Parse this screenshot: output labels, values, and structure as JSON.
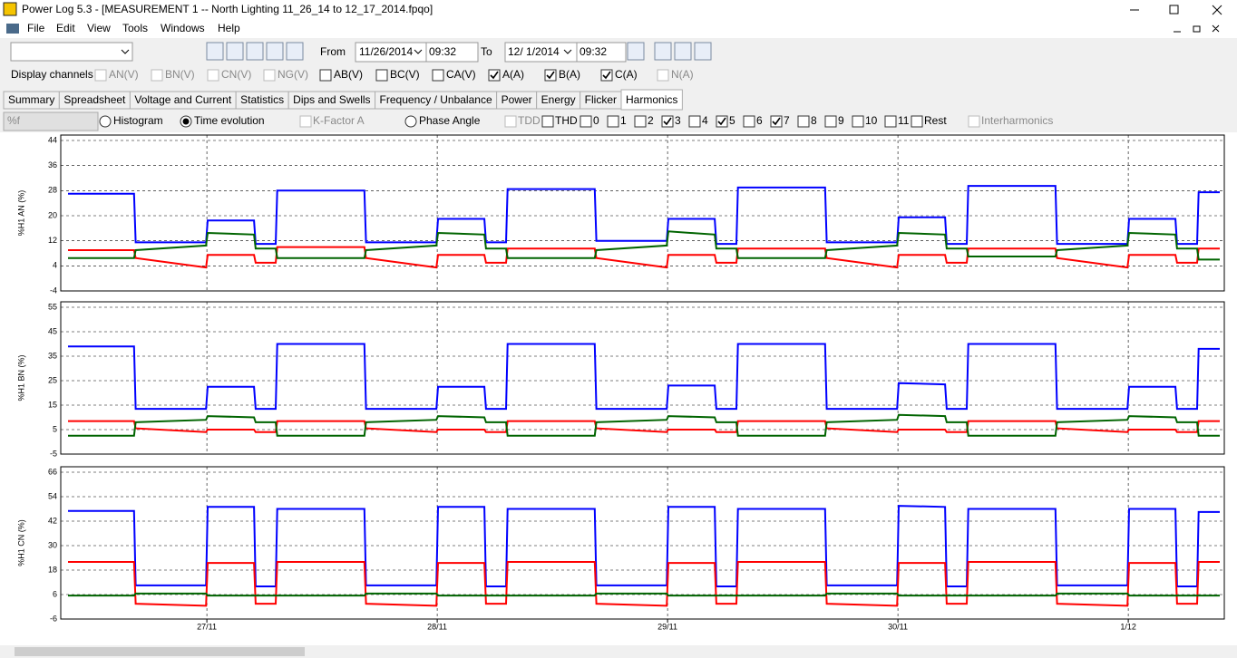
{
  "window": {
    "title": "Power Log 5.3 - [MEASUREMENT 1 -- North Lighting 11_26_14 to 12_17_2014.fpqo]"
  },
  "menu": [
    "File",
    "Edit",
    "View",
    "Tools",
    "Windows",
    "Help"
  ],
  "toolbar": {
    "from_label": "From",
    "from_date": "11/26/2014",
    "from_time": "09:32",
    "to_label": "To",
    "to_date": "12/ 1/2014",
    "to_time": "09:32"
  },
  "channels": {
    "label": "Display channels",
    "items": [
      {
        "label": "AN(V)",
        "checked": false,
        "enabled": false
      },
      {
        "label": "BN(V)",
        "checked": false,
        "enabled": false
      },
      {
        "label": "CN(V)",
        "checked": false,
        "enabled": false
      },
      {
        "label": "NG(V)",
        "checked": false,
        "enabled": false
      },
      {
        "label": "AB(V)",
        "checked": false,
        "enabled": true
      },
      {
        "label": "BC(V)",
        "checked": false,
        "enabled": true
      },
      {
        "label": "CA(V)",
        "checked": false,
        "enabled": true
      },
      {
        "label": "A(A)",
        "checked": true,
        "enabled": true
      },
      {
        "label": "B(A)",
        "checked": true,
        "enabled": true
      },
      {
        "label": "C(A)",
        "checked": true,
        "enabled": true
      },
      {
        "label": "N(A)",
        "checked": false,
        "enabled": false
      }
    ]
  },
  "tabs": {
    "items": [
      "Summary",
      "Spreadsheet",
      "Voltage and Current",
      "Statistics",
      "Dips and Swells",
      "Frequency / Unbalance",
      "Power",
      "Energy",
      "Flicker",
      "Harmonics"
    ],
    "active": 9
  },
  "harmonics": {
    "unit": "%f",
    "views": [
      {
        "label": "Histogram",
        "selected": false
      },
      {
        "label": "Time evolution",
        "selected": true
      }
    ],
    "kfactor": {
      "label": "K-Factor A",
      "checked": false,
      "enabled": false
    },
    "phase": {
      "label": "Phase Angle",
      "selected": false
    },
    "orders": [
      {
        "label": "TDD",
        "checked": false,
        "enabled": false
      },
      {
        "label": "THD",
        "checked": false,
        "enabled": true
      },
      {
        "label": "0",
        "checked": false,
        "enabled": true
      },
      {
        "label": "1",
        "checked": false,
        "enabled": true
      },
      {
        "label": "2",
        "checked": false,
        "enabled": true
      },
      {
        "label": "3",
        "checked": true,
        "enabled": true
      },
      {
        "label": "4",
        "checked": false,
        "enabled": true
      },
      {
        "label": "5",
        "checked": true,
        "enabled": true
      },
      {
        "label": "6",
        "checked": false,
        "enabled": true
      },
      {
        "label": "7",
        "checked": true,
        "enabled": true
      },
      {
        "label": "8",
        "checked": false,
        "enabled": true
      },
      {
        "label": "9",
        "checked": false,
        "enabled": true
      },
      {
        "label": "10",
        "checked": false,
        "enabled": true
      },
      {
        "label": "11",
        "checked": false,
        "enabled": true
      },
      {
        "label": "Rest",
        "checked": false,
        "enabled": true
      }
    ],
    "interharmonics": {
      "label": "Interharmonics",
      "checked": false,
      "enabled": false
    }
  },
  "chart_data": [
    {
      "type": "line",
      "ylabel": "%H1 AN (%)",
      "x": [
        "2014-11-26 09:32",
        "2014-11-26 16:25",
        "2014-11-26 16:35",
        "2014-11-26 23:55",
        "2014-11-27 00:05",
        "2014-11-27 04:55",
        "2014-11-27 05:05",
        "2014-11-27 07:10",
        "2014-11-27 07:20",
        "2014-11-27 16:25",
        "2014-11-27 16:35",
        "2014-11-27 23:55",
        "2014-11-28 00:05",
        "2014-11-28 04:55",
        "2014-11-28 05:05",
        "2014-11-28 07:10",
        "2014-11-28 07:20",
        "2014-11-28 16:25",
        "2014-11-28 16:35",
        "2014-11-28 23:55",
        "2014-11-29 00:05",
        "2014-11-29 04:55",
        "2014-11-29 05:05",
        "2014-11-29 07:10",
        "2014-11-29 07:20",
        "2014-11-29 16:25",
        "2014-11-29 16:35",
        "2014-11-29 23:55",
        "2014-11-30 00:05",
        "2014-11-30 04:55",
        "2014-11-30 05:05",
        "2014-11-30 07:10",
        "2014-11-30 07:20",
        "2014-11-30 16:25",
        "2014-11-30 16:35",
        "2014-11-30 23:55",
        "2014-12-01 00:05",
        "2014-12-01 04:55",
        "2014-12-01 05:05",
        "2014-12-01 07:10",
        "2014-12-01 07:20",
        "2014-12-01 09:32"
      ],
      "xlim": [
        "2014-11-26 09:32",
        "2014-12-01 09:32"
      ],
      "xticks": [
        "2014-11-27 00:00",
        "2014-11-28 00:00",
        "2014-11-29 00:00",
        "2014-11-30 00:00",
        "2014-12-01 00:00"
      ],
      "ylim": [
        -4,
        44
      ],
      "yticks": [
        -4,
        4,
        12,
        20,
        28,
        36,
        44
      ],
      "grid": true,
      "series": [
        {
          "color": "#0000ff",
          "values": [
            27,
            27,
            11.5,
            11.5,
            18.5,
            18.5,
            11,
            11,
            28,
            28,
            11.5,
            11.5,
            19,
            19,
            11.5,
            11.5,
            28.5,
            28.5,
            12,
            12,
            19,
            19,
            11,
            11,
            29,
            29,
            11.5,
            11.5,
            19.5,
            19.5,
            11,
            11,
            29.5,
            29.5,
            11,
            11,
            19,
            19,
            11,
            11,
            27.5,
            27.5
          ]
        },
        {
          "color": "#ff0000",
          "values": [
            9,
            9,
            6.5,
            3.5,
            7.5,
            7.5,
            5,
            5,
            10,
            10,
            6.5,
            3.5,
            7.5,
            7.5,
            5,
            5,
            9.5,
            9.5,
            6.5,
            3.5,
            7.5,
            7.5,
            5,
            5,
            9.5,
            9.5,
            6.5,
            3.5,
            7.5,
            7.5,
            5,
            5,
            9.5,
            9.5,
            6.5,
            3.5,
            7.5,
            7.5,
            5,
            5,
            9.5,
            9.5
          ]
        },
        {
          "color": "#006400",
          "values": [
            6.5,
            6.5,
            9,
            10.5,
            14.5,
            14,
            9.5,
            9.5,
            6.5,
            6.5,
            9,
            10.5,
            14.5,
            14,
            9.5,
            9.5,
            6.5,
            6.5,
            9,
            10.5,
            15,
            14,
            9.5,
            9.5,
            6.5,
            6.5,
            9,
            10.5,
            14.5,
            14,
            9.5,
            9.5,
            7,
            7,
            9,
            10.5,
            14.5,
            14,
            9.5,
            9.5,
            6,
            6
          ]
        }
      ]
    },
    {
      "type": "line",
      "ylabel": "%H1 BN (%)",
      "x": [
        "2014-11-26 09:32",
        "2014-11-26 16:25",
        "2014-11-26 16:35",
        "2014-11-26 23:55",
        "2014-11-27 00:05",
        "2014-11-27 04:55",
        "2014-11-27 05:05",
        "2014-11-27 07:10",
        "2014-11-27 07:20",
        "2014-11-27 16:25",
        "2014-11-27 16:35",
        "2014-11-27 23:55",
        "2014-11-28 00:05",
        "2014-11-28 04:55",
        "2014-11-28 05:05",
        "2014-11-28 07:10",
        "2014-11-28 07:20",
        "2014-11-28 16:25",
        "2014-11-28 16:35",
        "2014-11-28 23:55",
        "2014-11-29 00:05",
        "2014-11-29 04:55",
        "2014-11-29 05:05",
        "2014-11-29 07:10",
        "2014-11-29 07:20",
        "2014-11-29 16:25",
        "2014-11-29 16:35",
        "2014-11-29 23:55",
        "2014-11-30 00:05",
        "2014-11-30 04:55",
        "2014-11-30 05:05",
        "2014-11-30 07:10",
        "2014-11-30 07:20",
        "2014-11-30 16:25",
        "2014-11-30 16:35",
        "2014-11-30 23:55",
        "2014-12-01 00:05",
        "2014-12-01 04:55",
        "2014-12-01 05:05",
        "2014-12-01 07:10",
        "2014-12-01 07:20",
        "2014-12-01 09:32"
      ],
      "xlim": [
        "2014-11-26 09:32",
        "2014-12-01 09:32"
      ],
      "xticks": [
        "2014-11-27 00:00",
        "2014-11-28 00:00",
        "2014-11-29 00:00",
        "2014-11-30 00:00",
        "2014-12-01 00:00"
      ],
      "ylim": [
        -5,
        55
      ],
      "yticks": [
        -5,
        5,
        15,
        25,
        35,
        45,
        55
      ],
      "grid": true,
      "series": [
        {
          "color": "#0000ff",
          "values": [
            39,
            39,
            13.5,
            13.5,
            22.5,
            22.5,
            13.5,
            13.5,
            40,
            40,
            13.5,
            13.5,
            22.5,
            22.5,
            13.5,
            13.5,
            40,
            40,
            13.5,
            13.5,
            23,
            23,
            13.5,
            13.5,
            40,
            40,
            13.5,
            13.5,
            24,
            23.5,
            13.5,
            13.5,
            40,
            40,
            13.5,
            13.5,
            22.5,
            22.5,
            13.5,
            13.5,
            38,
            38
          ]
        },
        {
          "color": "#ff0000",
          "values": [
            8.5,
            8.5,
            5.5,
            4,
            5,
            5,
            4,
            4,
            8.5,
            8.5,
            5.5,
            4,
            5,
            5,
            4,
            4,
            8.5,
            8.5,
            5.5,
            4,
            5,
            5,
            4,
            4,
            8.5,
            8.5,
            5.5,
            4,
            5,
            5,
            4,
            4,
            8.5,
            8.5,
            5.5,
            4,
            5,
            5,
            4,
            4,
            8.5,
            8.5
          ]
        },
        {
          "color": "#006400",
          "values": [
            2.5,
            2.5,
            8,
            9,
            10.5,
            10,
            8,
            8,
            2.5,
            2.5,
            8,
            9,
            10.5,
            10,
            8,
            8,
            2.5,
            2.5,
            8,
            9,
            10.5,
            10,
            8,
            8,
            2.5,
            2.5,
            8,
            9,
            11,
            10.5,
            8,
            8,
            2.5,
            2.5,
            8,
            9,
            10.5,
            10,
            8,
            8,
            2.5,
            2.5
          ]
        }
      ]
    },
    {
      "type": "line",
      "ylabel": "%H1 CN (%)",
      "x": [
        "2014-11-26 09:32",
        "2014-11-26 16:25",
        "2014-11-26 16:35",
        "2014-11-26 23:55",
        "2014-11-27 00:05",
        "2014-11-27 04:55",
        "2014-11-27 05:05",
        "2014-11-27 07:10",
        "2014-11-27 07:20",
        "2014-11-27 16:25",
        "2014-11-27 16:35",
        "2014-11-27 23:55",
        "2014-11-28 00:05",
        "2014-11-28 04:55",
        "2014-11-28 05:05",
        "2014-11-28 07:10",
        "2014-11-28 07:20",
        "2014-11-28 16:25",
        "2014-11-28 16:35",
        "2014-11-28 23:55",
        "2014-11-29 00:05",
        "2014-11-29 04:55",
        "2014-11-29 05:05",
        "2014-11-29 07:10",
        "2014-11-29 07:20",
        "2014-11-29 16:25",
        "2014-11-29 16:35",
        "2014-11-29 23:55",
        "2014-11-30 00:05",
        "2014-11-30 04:55",
        "2014-11-30 05:05",
        "2014-11-30 07:10",
        "2014-11-30 07:20",
        "2014-11-30 16:25",
        "2014-11-30 16:35",
        "2014-11-30 23:55",
        "2014-12-01 00:05",
        "2014-12-01 04:55",
        "2014-12-01 05:05",
        "2014-12-01 07:10",
        "2014-12-01 07:20",
        "2014-12-01 09:32"
      ],
      "xlim": [
        "2014-11-26 09:32",
        "2014-12-01 09:32"
      ],
      "xticks": [
        {
          "value": "2014-11-27 00:00",
          "label": "27/11"
        },
        {
          "value": "2014-11-28 00:00",
          "label": "28/11"
        },
        {
          "value": "2014-11-29 00:00",
          "label": "29/11"
        },
        {
          "value": "2014-11-30 00:00",
          "label": "30/11"
        },
        {
          "value": "2014-12-01 00:00",
          "label": "1/12"
        }
      ],
      "ylim": [
        -6,
        66
      ],
      "yticks": [
        -6,
        6,
        18,
        30,
        42,
        54,
        66
      ],
      "grid": true,
      "series": [
        {
          "color": "#0000ff",
          "values": [
            47,
            47,
            10.5,
            10.5,
            49,
            49,
            10,
            10,
            48,
            48,
            10.5,
            10.5,
            49,
            49,
            10,
            10,
            48,
            48,
            10.5,
            10.5,
            49,
            49,
            10,
            10,
            48,
            48,
            10.5,
            10.5,
            49.5,
            49,
            10,
            10,
            48,
            48,
            10.5,
            10.5,
            48,
            48,
            10,
            10,
            46.5,
            46.5
          ]
        },
        {
          "color": "#ff0000",
          "values": [
            22,
            22,
            1.5,
            0.5,
            21.5,
            21.5,
            1.5,
            1.5,
            22,
            22,
            1.5,
            0.5,
            21.5,
            21.5,
            1.5,
            1.5,
            22,
            22,
            1.5,
            0.5,
            21.5,
            21.5,
            1.5,
            1.5,
            22,
            22,
            1.5,
            0.5,
            21.5,
            21.5,
            1.5,
            1.5,
            22,
            22,
            1.5,
            0.5,
            21.5,
            21.5,
            1.5,
            1.5,
            22,
            22
          ]
        },
        {
          "color": "#006400",
          "values": [
            5.5,
            5.5,
            6.5,
            6.5,
            5.5,
            5.5,
            5.5,
            5.5,
            5.5,
            5.5,
            6.5,
            6.5,
            5.5,
            5.5,
            5.5,
            5.5,
            5.5,
            5.5,
            6.5,
            6.5,
            5.5,
            5.5,
            5.5,
            5.5,
            5.5,
            5.5,
            6.5,
            6.5,
            5.5,
            5.5,
            5.5,
            5.5,
            5.5,
            5.5,
            6.5,
            6.5,
            5.5,
            5.5,
            5.5,
            5.5,
            5.5,
            5.5
          ]
        }
      ]
    }
  ]
}
